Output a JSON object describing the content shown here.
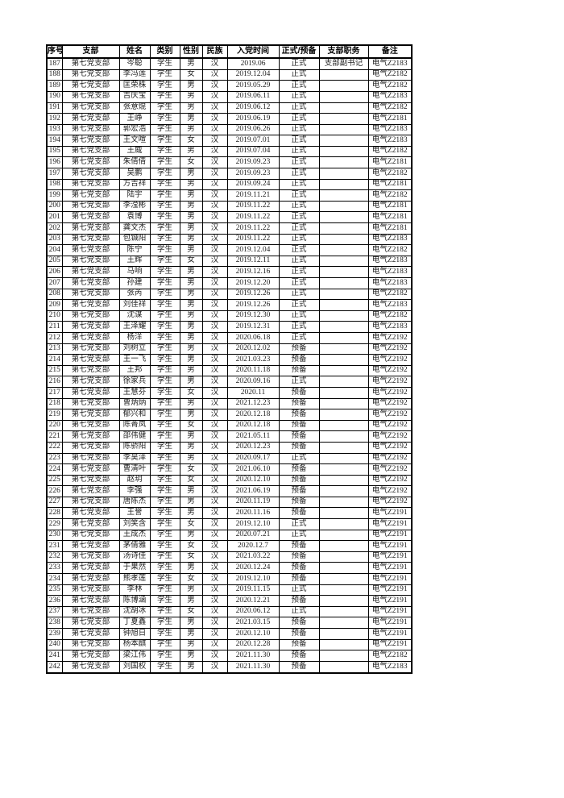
{
  "table": {
    "columns": [
      "序号",
      "支部",
      "姓名",
      "类别",
      "性别",
      "民族",
      "入党时间",
      "正式/预备",
      "支部职务",
      "备注"
    ],
    "col_keys": [
      "id",
      "branch",
      "name",
      "category",
      "gender",
      "ethnicity",
      "join-date",
      "status",
      "position",
      "remark"
    ],
    "rows": [
      [
        "187",
        "第七党支部",
        "岑聪",
        "学生",
        "男",
        "汉",
        "2019.06",
        "正式",
        "支部副书记",
        "电气Z2183"
      ],
      [
        "188",
        "第七党支部",
        "李冯莲",
        "学生",
        "女",
        "汉",
        "2019.12.04",
        "正式",
        "",
        "电气Z2182"
      ],
      [
        "189",
        "第七党支部",
        "匡荣株",
        "学生",
        "男",
        "汉",
        "2019.05.29",
        "正式",
        "",
        "电气Z2182"
      ],
      [
        "190",
        "第七党支部",
        "吉庆宝",
        "学生",
        "男",
        "汉",
        "2019.06.11",
        "正式",
        "",
        "电气Z2183"
      ],
      [
        "191",
        "第七党支部",
        "张意焜",
        "学生",
        "男",
        "汉",
        "2019.06.12",
        "正式",
        "",
        "电气Z2182"
      ],
      [
        "192",
        "第七党支部",
        "王峥",
        "学生",
        "男",
        "汉",
        "2019.06.19",
        "正式",
        "",
        "电气Z2181"
      ],
      [
        "193",
        "第七党支部",
        "郭宏浩",
        "学生",
        "男",
        "汉",
        "2019.06.26",
        "正式",
        "",
        "电气Z2183"
      ],
      [
        "194",
        "第七党支部",
        "王文喧",
        "学生",
        "女",
        "汉",
        "2019.07.01",
        "正式",
        "",
        "电气Z2183"
      ],
      [
        "195",
        "第七党支部",
        "王威",
        "学生",
        "男",
        "汉",
        "2019.07.04",
        "正式",
        "",
        "电气Z2182"
      ],
      [
        "196",
        "第七党支部",
        "朱倩倩",
        "学生",
        "女",
        "汉",
        "2019.09.23",
        "正式",
        "",
        "电气Z2181"
      ],
      [
        "197",
        "第七党支部",
        "吴鹏",
        "学生",
        "男",
        "汉",
        "2019.09.23",
        "正式",
        "",
        "电气Z2182"
      ],
      [
        "198",
        "第七党支部",
        "方吉祥",
        "学生",
        "男",
        "汉",
        "2019.09.24",
        "正式",
        "",
        "电气Z2181"
      ],
      [
        "199",
        "第七党支部",
        "陆宇",
        "学生",
        "男",
        "汉",
        "2019.11.21",
        "正式",
        "",
        "电气Z2182"
      ],
      [
        "200",
        "第七党支部",
        "李滢彬",
        "学生",
        "男",
        "汉",
        "2019.11.22",
        "正式",
        "",
        "电气Z2181"
      ],
      [
        "201",
        "第七党支部",
        "袁博",
        "学生",
        "男",
        "汉",
        "2019.11.22",
        "正式",
        "",
        "电气Z2181"
      ],
      [
        "202",
        "第七党支部",
        "龚文杰",
        "学生",
        "男",
        "汉",
        "2019.11.22",
        "正式",
        "",
        "电气Z2181"
      ],
      [
        "203",
        "第七党支部",
        "包铖阳",
        "学生",
        "男",
        "汉",
        "2019.11.22",
        "正式",
        "",
        "电气Z2183"
      ],
      [
        "204",
        "第七党支部",
        "陈宁",
        "学生",
        "男",
        "汉",
        "2019.12.04",
        "正式",
        "",
        "电气Z2182"
      ],
      [
        "205",
        "第七党支部",
        "王辉",
        "学生",
        "女",
        "汉",
        "2019.12.11",
        "正式",
        "",
        "电气Z2183"
      ],
      [
        "206",
        "第七党支部",
        "马响",
        "学生",
        "男",
        "汉",
        "2019.12.16",
        "正式",
        "",
        "电气Z2183"
      ],
      [
        "207",
        "第七党支部",
        "孙建",
        "学生",
        "男",
        "汉",
        "2019.12.20",
        "正式",
        "",
        "电气Z2183"
      ],
      [
        "208",
        "第七党支部",
        "张芮",
        "学生",
        "男",
        "汉",
        "2019.12.26",
        "正式",
        "",
        "电气Z2182"
      ],
      [
        "209",
        "第七党支部",
        "刘佳祥",
        "学生",
        "男",
        "汉",
        "2019.12.26",
        "正式",
        "",
        "电气Z2183"
      ],
      [
        "210",
        "第七党支部",
        "沈谋",
        "学生",
        "男",
        "汉",
        "2019.12.30",
        "正式",
        "",
        "电气Z2182"
      ],
      [
        "211",
        "第七党支部",
        "王泽耀",
        "学生",
        "男",
        "汉",
        "2019.12.31",
        "正式",
        "",
        "电气Z2183"
      ],
      [
        "212",
        "第七党支部",
        "杨洋",
        "学生",
        "男",
        "汉",
        "2020.06.18",
        "正式",
        "",
        "电气Z2192"
      ],
      [
        "213",
        "第七党支部",
        "刘树立",
        "学生",
        "男",
        "汉",
        "2020.12.02",
        "预备",
        "",
        "电气Z2192"
      ],
      [
        "214",
        "第七党支部",
        "王一飞",
        "学生",
        "男",
        "汉",
        "2021.03.23",
        "预备",
        "",
        "电气Z2192"
      ],
      [
        "215",
        "第七党支部",
        "王邦",
        "学生",
        "男",
        "汉",
        "2020.11.18",
        "预备",
        "",
        "电气Z2192"
      ],
      [
        "216",
        "第七党支部",
        "徐家兵",
        "学生",
        "男",
        "汉",
        "2020.09.16",
        "正式",
        "",
        "电气Z2192"
      ],
      [
        "217",
        "第七党支部",
        "王慧芬",
        "学生",
        "女",
        "汉",
        "2020.11",
        "预备",
        "",
        "电气Z2192"
      ],
      [
        "218",
        "第七党支部",
        "曹炳炳",
        "学生",
        "男",
        "汉",
        "2021.12.23",
        "预备",
        "",
        "电气Z2192"
      ],
      [
        "219",
        "第七党支部",
        "郁兴和",
        "学生",
        "男",
        "汉",
        "2020.12.18",
        "预备",
        "",
        "电气Z2192"
      ],
      [
        "220",
        "第七党支部",
        "陈菁岚",
        "学生",
        "女",
        "汉",
        "2020.12.18",
        "预备",
        "",
        "电气Z2192"
      ],
      [
        "221",
        "第七党支部",
        "邵伟健",
        "学生",
        "男",
        "汉",
        "2021.05.11",
        "预备",
        "",
        "电气Z2192"
      ],
      [
        "222",
        "第七党支部",
        "陈骄阳",
        "学生",
        "男",
        "汉",
        "2020.12.23",
        "预备",
        "",
        "电气Z2192"
      ],
      [
        "223",
        "第七党支部",
        "李昊泽",
        "学生",
        "男",
        "汉",
        "2020.09.17",
        "正式",
        "",
        "电气Z2192"
      ],
      [
        "224",
        "第七党支部",
        "曹清叶",
        "学生",
        "女",
        "汉",
        "2021.06.10",
        "预备",
        "",
        "电气Z2192"
      ],
      [
        "225",
        "第七党支部",
        "赵玥",
        "学生",
        "女",
        "汉",
        "2020.12.10",
        "预备",
        "",
        "电气Z2192"
      ],
      [
        "226",
        "第七党支部",
        "李强",
        "学生",
        "男",
        "汉",
        "2021.06.19",
        "预备",
        "",
        "电气Z2192"
      ],
      [
        "227",
        "第七党支部",
        "唐陈杰",
        "学生",
        "男",
        "汉",
        "2020.11.19",
        "预备",
        "",
        "电气Z2192"
      ],
      [
        "228",
        "第七党支部",
        "王誉",
        "学生",
        "男",
        "汉",
        "2020.11.16",
        "预备",
        "",
        "电气Z2191"
      ],
      [
        "229",
        "第七党支部",
        "刘笑含",
        "学生",
        "女",
        "汉",
        "2019.12.10",
        "正式",
        "",
        "电气Z2191"
      ],
      [
        "230",
        "第七党支部",
        "王成杰",
        "学生",
        "男",
        "汉",
        "2020.07.21",
        "正式",
        "",
        "电气Z2191"
      ],
      [
        "231",
        "第七党支部",
        "茅倩雅",
        "学生",
        "女",
        "汉",
        "2020.12.7",
        "预备",
        "",
        "电气Z2191"
      ],
      [
        "232",
        "第七党支部",
        "汤诗佳",
        "学生",
        "女",
        "汉",
        "2021.03.22",
        "预备",
        "",
        "电气Z2191"
      ],
      [
        "233",
        "第七党支部",
        "于果然",
        "学生",
        "男",
        "汉",
        "2020.12.24",
        "预备",
        "",
        "电气Z2191"
      ],
      [
        "234",
        "第七党支部",
        "熊孝莲",
        "学生",
        "女",
        "汉",
        "2019.12.10",
        "预备",
        "",
        "电气Z2191"
      ],
      [
        "235",
        "第七党支部",
        "李林",
        "学生",
        "男",
        "汉",
        "2019.11.15",
        "正式",
        "",
        "电气Z2191"
      ],
      [
        "236",
        "第七党支部",
        "陈博涵",
        "学生",
        "男",
        "汉",
        "2020.12.21",
        "预备",
        "",
        "电气Z2191"
      ],
      [
        "237",
        "第七党支部",
        "沈胡冰",
        "学生",
        "女",
        "汉",
        "2020.06.12",
        "正式",
        "",
        "电气Z2191"
      ],
      [
        "238",
        "第七党支部",
        "丁夏鑫",
        "学生",
        "男",
        "汉",
        "2021.03.15",
        "预备",
        "",
        "电气Z2191"
      ],
      [
        "239",
        "第七党支部",
        "钟旭日",
        "学生",
        "男",
        "汉",
        "2020.12.10",
        "预备",
        "",
        "电气Z2191"
      ],
      [
        "240",
        "第七党支部",
        "杨本麒",
        "学生",
        "男",
        "汉",
        "2020.12.28",
        "预备",
        "",
        "电气Z2191"
      ],
      [
        "241",
        "第七党支部",
        "梁江伟",
        "学生",
        "男",
        "汉",
        "2021.11.30",
        "预备",
        "",
        "电气Z2182"
      ],
      [
        "242",
        "第七党支部",
        "刘国权",
        "学生",
        "男",
        "汉",
        "2021.11.30",
        "预备",
        "",
        "电气Z2183"
      ]
    ]
  },
  "colors": {
    "background": "#ffffff",
    "border": "#000000",
    "header_text": "#000000",
    "body_text": "#222222"
  }
}
